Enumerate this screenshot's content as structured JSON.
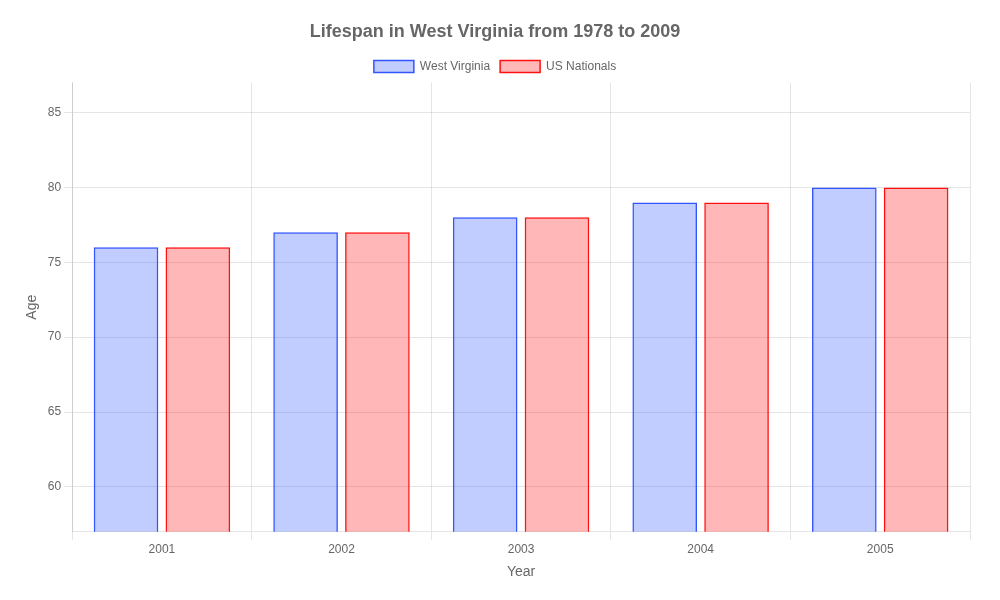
{
  "chart_data": {
    "type": "bar",
    "title": "Lifespan in West Virginia from 1978 to 2009",
    "xlabel": "Year",
    "ylabel": "Age",
    "categories": [
      "2001",
      "2002",
      "2003",
      "2004",
      "2005"
    ],
    "series": [
      {
        "name": "West Virginia",
        "color": "#3355ff",
        "values": [
          76,
          77,
          78,
          79,
          80
        ]
      },
      {
        "name": "US Nationals",
        "color": "#ff1111",
        "values": [
          76,
          77,
          78,
          79,
          80
        ]
      }
    ],
    "ylim": [
      57,
      87
    ],
    "yticks": [
      60,
      65,
      70,
      75,
      80,
      85
    ],
    "grid": true,
    "legend": "top"
  }
}
